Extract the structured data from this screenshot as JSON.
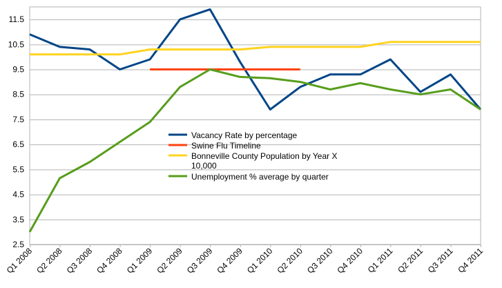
{
  "chart_data": {
    "type": "line",
    "title": "",
    "xlabel": "",
    "ylabel": "",
    "categories": [
      "Q1 2008",
      "Q2 2008",
      "Q3 2008",
      "Q4 2008",
      "Q1 2009",
      "Q2 2009",
      "Q3 2009",
      "Q4 2009",
      "Q1 2010",
      "Q2 2010",
      "Q3 2010",
      "Q4 2010",
      "Q1 2011",
      "Q2 2011",
      "Q3 2011",
      "Q4  2011"
    ],
    "ylim": [
      2.5,
      12.0
    ],
    "yticks": [
      "2.5",
      "3.5",
      "4.5",
      "5.5",
      "6.5",
      "7.5",
      "8.5",
      "9.5",
      "10.5",
      "11.5"
    ],
    "ytick_values": [
      2.5,
      3.5,
      4.5,
      5.5,
      6.5,
      7.5,
      8.5,
      9.5,
      10.5,
      11.5
    ],
    "grid": true,
    "legend_position": "center",
    "series": [
      {
        "name": "Vacancy Rate by percentage",
        "color": "#004586",
        "values": [
          10.9,
          10.4,
          10.3,
          9.5,
          9.9,
          11.5,
          11.9,
          9.8,
          7.9,
          8.8,
          9.3,
          9.3,
          9.9,
          8.6,
          9.3,
          7.9
        ]
      },
      {
        "name": "Swine Flu Timeline",
        "color": "#ff420e",
        "values": [
          null,
          null,
          null,
          null,
          9.5,
          9.5,
          9.5,
          9.5,
          9.5,
          9.5,
          null,
          null,
          null,
          null,
          null,
          null
        ]
      },
      {
        "name": "Bonneville County Population by Year X 10,000",
        "color": "#ffd320",
        "legend_lines": [
          "Bonneville County Population by Year X",
          "10,000"
        ],
        "values": [
          10.1,
          10.1,
          10.1,
          10.1,
          10.3,
          10.3,
          10.3,
          10.3,
          10.4,
          10.4,
          10.4,
          10.4,
          10.6,
          10.6,
          10.6,
          10.6
        ]
      },
      {
        "name": "Unemployment % average by quarter",
        "color": "#579d1c",
        "values": [
          3.0,
          5.15,
          5.8,
          6.6,
          7.4,
          8.8,
          9.5,
          9.2,
          9.15,
          9.0,
          8.7,
          8.95,
          8.7,
          8.5,
          8.7,
          7.9
        ]
      }
    ]
  }
}
